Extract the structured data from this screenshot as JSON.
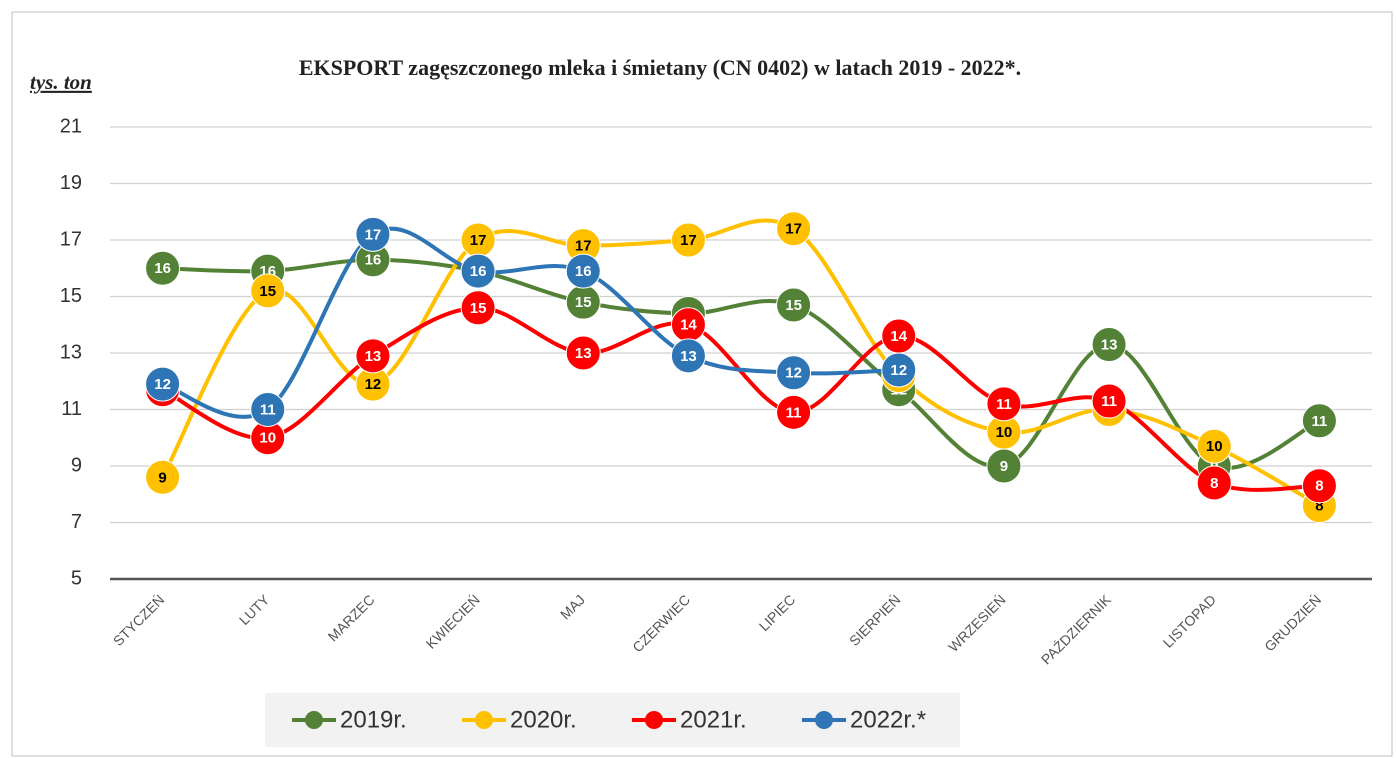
{
  "chart_data": {
    "type": "line",
    "title": "EKSPORT zagęszczonego mleka i śmietany (CN 0402) w latach 2019  -  2022*.",
    "y_label": "tys. ton",
    "categories": [
      "STYCZEŃ",
      "LUTY",
      "MARZEC",
      "KWIECIEŃ",
      "MAJ",
      "CZERWIEC",
      "LIPIEC",
      "SIERPIEŃ",
      "WRZESIEŃ",
      "PAŹDZIERNIK",
      "LISTOPAD",
      "GRUDZIEŃ"
    ],
    "series": [
      {
        "name": "2019r.",
        "color": "#538135",
        "values": [
          16.0,
          15.9,
          16.3,
          15.9,
          14.8,
          14.4,
          14.7,
          11.7,
          9.0,
          13.3,
          9.0,
          10.6
        ],
        "value_labels": [
          "16",
          "16",
          "16",
          "16",
          "15",
          "14",
          "15",
          "12",
          "9",
          "13",
          "9",
          "11"
        ]
      },
      {
        "name": "2020r.",
        "color": "#ffc000",
        "values": [
          8.6,
          15.2,
          11.9,
          17.0,
          16.8,
          17.0,
          17.4,
          12.2,
          10.2,
          11.0,
          9.7,
          7.6
        ],
        "value_labels": [
          "9",
          "15",
          "12",
          "17",
          "17",
          "17",
          "17",
          "12",
          "10",
          "11",
          "10",
          "8"
        ]
      },
      {
        "name": "2021r.",
        "color": "#ff0000",
        "values": [
          11.7,
          10.0,
          12.9,
          14.6,
          13.0,
          14.0,
          10.9,
          13.6,
          11.2,
          11.3,
          8.4,
          8.3
        ],
        "value_labels": [
          "12",
          "10",
          "13",
          "15",
          "13",
          "14",
          "11",
          "14",
          "11",
          "11",
          "8",
          "8"
        ]
      },
      {
        "name": "2022r.*",
        "color": "#2e75b6",
        "values": [
          11.9,
          11.0,
          17.2,
          15.9,
          15.9,
          12.9,
          12.3,
          12.4,
          null,
          null,
          null,
          null
        ],
        "value_labels": [
          "12",
          "11",
          "17",
          "16",
          "16",
          "13",
          "12",
          "12",
          null,
          null,
          null,
          null
        ]
      }
    ],
    "ylim": [
      5,
      21
    ],
    "yticks": [
      5,
      7,
      9,
      11,
      13,
      15,
      17,
      19,
      21
    ],
    "grid": true,
    "legend": "bottom"
  }
}
